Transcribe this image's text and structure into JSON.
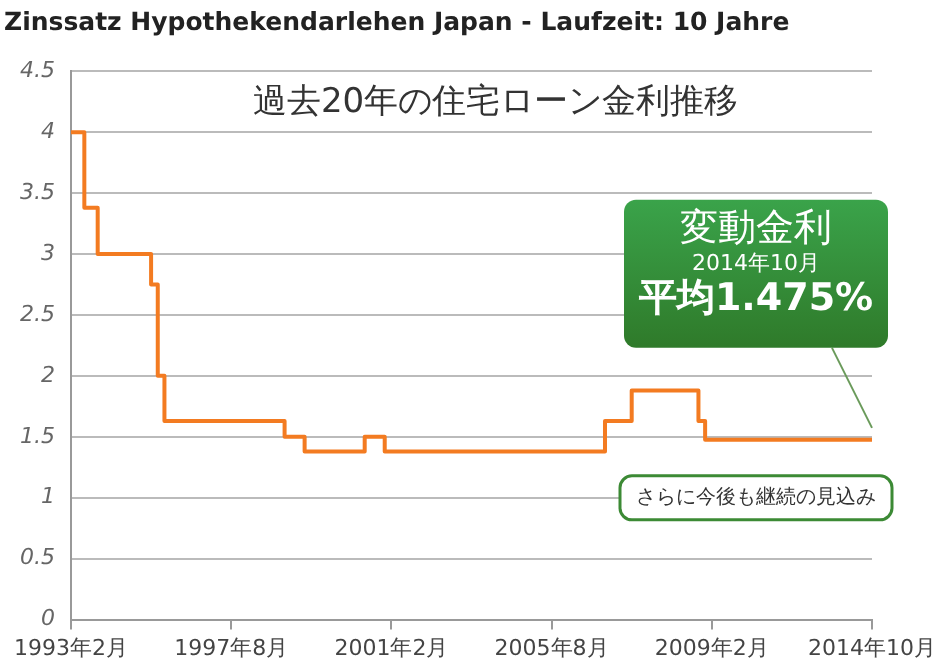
{
  "chart_data": {
    "type": "step",
    "title": "Zinssatz Hypothekendarlehen Japan - Laufzeit: 10 Jahre",
    "subtitle": "過去20年の住宅ローン金利推移",
    "categories": [
      "1993年2月",
      null,
      null,
      null,
      null,
      null,
      null,
      null,
      null,
      null,
      null,
      null,
      null,
      null,
      null,
      null,
      null,
      null,
      null,
      null,
      null,
      null,
      null,
      null,
      "1997年8月",
      null,
      null,
      null,
      null,
      null,
      null,
      null,
      null,
      null,
      null,
      null,
      null,
      null,
      null,
      null,
      null,
      null,
      null,
      null,
      null,
      null,
      null,
      null,
      "2001年2月",
      null,
      null,
      null,
      null,
      null,
      null,
      null,
      null,
      null,
      null,
      null,
      null,
      null,
      null,
      null,
      null,
      null,
      null,
      null,
      null,
      null,
      null,
      null,
      "2005年8月",
      null,
      null,
      null,
      null,
      null,
      null,
      null,
      null,
      null,
      null,
      null,
      null,
      null,
      null,
      null,
      null,
      null,
      null,
      null,
      null,
      null,
      null,
      null,
      "2009年2月",
      null,
      null,
      null,
      null,
      null,
      null,
      null,
      null,
      null,
      null,
      null,
      null,
      null,
      null,
      null,
      null,
      null,
      null,
      null,
      null,
      null,
      null,
      null,
      "2014年10月"
    ],
    "series": [
      {
        "color": "#f37b21",
        "values": [
          4,
          4,
          4,
          3.38,
          3.38,
          3,
          3,
          3,
          3,
          3,
          3,
          3,
          3,
          2.75,
          2,
          1.63,
          1.63,
          1.63,
          1.63,
          1.63,
          1.63,
          1.63,
          1.63,
          1.63,
          1.63,
          1.63,
          1.63,
          1.63,
          1.63,
          1.63,
          1.63,
          1.63,
          1.63,
          1.5,
          1.5,
          1.5,
          1.38,
          1.38,
          1.38,
          1.38,
          1.38,
          1.38,
          1.38,
          1.38,
          1.38,
          1.5,
          1.5,
          1.5,
          1.38,
          1.38,
          1.38,
          1.38,
          1.38,
          1.38,
          1.38,
          1.38,
          1.38,
          1.38,
          1.38,
          1.38,
          1.38,
          1.38,
          1.38,
          1.38,
          1.38,
          1.38,
          1.38,
          1.38,
          1.38,
          1.38,
          1.38,
          1.38,
          1.38,
          1.38,
          1.38,
          1.38,
          1.38,
          1.38,
          1.38,
          1.38,
          1.38,
          1.63,
          1.63,
          1.63,
          1.63,
          1.88,
          1.88,
          1.88,
          1.88,
          1.88,
          1.88,
          1.88,
          1.88,
          1.88,
          1.88,
          1.63,
          1.475,
          1.475,
          1.475,
          1.475,
          1.475,
          1.475,
          1.475,
          1.475,
          1.475,
          1.475,
          1.475,
          1.475,
          1.475,
          1.475,
          1.475,
          1.475,
          1.475,
          1.475,
          1.475,
          1.475,
          1.475,
          1.475,
          1.475,
          1.475,
          1.475
        ]
      }
    ],
    "ylim": [
      0,
      4.5
    ],
    "yticks": [
      0,
      0.5,
      1,
      1.5,
      2,
      2.5,
      3,
      3.5,
      4,
      4.5
    ],
    "grid": "y",
    "legend": false,
    "marker": "none",
    "annotations": [
      "変動金利",
      "2014年10月",
      {
        "text": "平均1.475%",
        "x": "2014年10月",
        "y": 1.475
      },
      {
        "text": "さらに今後も継続の見込み",
        "x": "2014年10月",
        "y": 1.475
      }
    ]
  }
}
